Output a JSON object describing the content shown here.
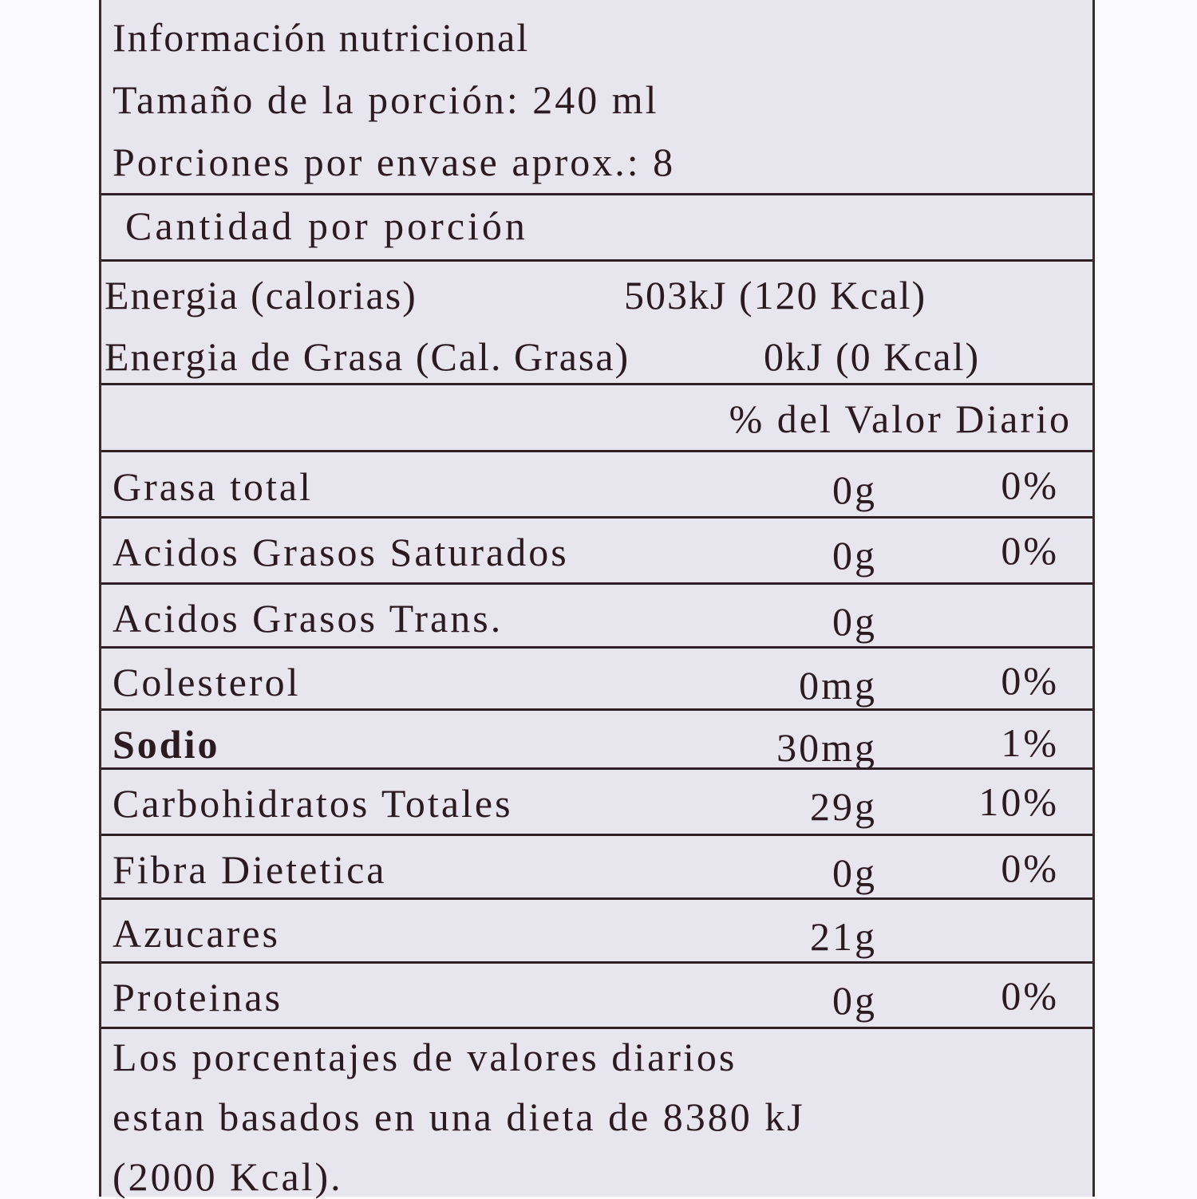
{
  "header": {
    "title": "Información nutricional",
    "serving_size": "Tamaño de la porción: 240 ml",
    "servings_per_container": "Porciones por envase aprox.: 8",
    "amount_per_serving": "Cantidad por porción"
  },
  "energy": {
    "label": "Energia (calorias)",
    "value": "503kJ (120 Kcal)",
    "fat_label": "Energia de Grasa (Cal. Grasa)",
    "fat_value": "0kJ (0 Kcal)"
  },
  "daily_value_header": "% del Valor Diario",
  "nutrients": [
    {
      "name": "Grasa total",
      "amount": "0g",
      "dv": "0%"
    },
    {
      "name": "Acidos Grasos Saturados",
      "amount": "0g",
      "dv": "0%"
    },
    {
      "name": "Acidos Grasos Trans.",
      "amount": "0g",
      "dv": ""
    },
    {
      "name": "Colesterol",
      "amount": "0mg",
      "dv": "0%"
    },
    {
      "name": "Sodio",
      "amount": "30mg",
      "dv": "1%"
    },
    {
      "name": "Carbohidratos Totales",
      "amount": "29g",
      "dv": "10%"
    },
    {
      "name": "Fibra Dietetica",
      "amount": "0g",
      "dv": "0%"
    },
    {
      "name": "Azucares",
      "amount": "21g",
      "dv": ""
    },
    {
      "name": "Proteinas",
      "amount": "0g",
      "dv": "0%"
    }
  ],
  "footnote": [
    "Los porcentajes de valores diarios",
    "estan basados en una dieta de 8380 kJ",
    "(2000 Kcal)."
  ]
}
